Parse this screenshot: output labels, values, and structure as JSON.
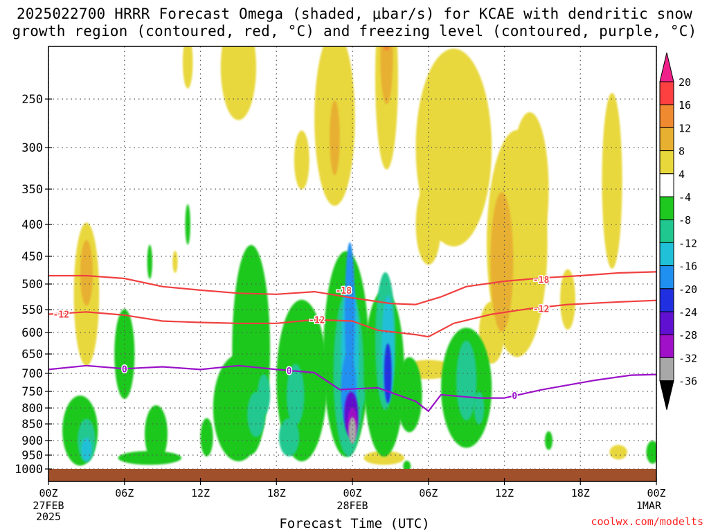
{
  "title_line1": "2025022700 HRRR Forecast Omega (shaded, μbar/s) for KCAE with dendritic snow",
  "title_line2": "growth region (contoured, red, °C) and freezing level (contoured, purple, °C)",
  "credit": "coolwx.com/modelts",
  "xlabel": "Forecast Time (UTC)",
  "chart_data": {
    "type": "contour-time-height",
    "x_ticks": [
      {
        "h": 0,
        "label": "00Z",
        "sub": [
          "27FEB",
          "2025"
        ]
      },
      {
        "h": 6,
        "label": "06Z",
        "sub": []
      },
      {
        "h": 12,
        "label": "12Z",
        "sub": []
      },
      {
        "h": 18,
        "label": "18Z",
        "sub": []
      },
      {
        "h": 24,
        "label": "00Z",
        "sub": [
          "28FEB"
        ]
      },
      {
        "h": 30,
        "label": "06Z",
        "sub": []
      },
      {
        "h": 36,
        "label": "12Z",
        "sub": []
      },
      {
        "h": 42,
        "label": "18Z",
        "sub": []
      },
      {
        "h": 48,
        "label": "00Z",
        "sub": [
          "1MAR"
        ]
      }
    ],
    "xlim": [
      0,
      48
    ],
    "y_ticks": [
      250,
      300,
      350,
      400,
      450,
      500,
      550,
      600,
      650,
      700,
      750,
      800,
      850,
      900,
      950,
      1000
    ],
    "ylim_hPa": [
      1000,
      200
    ],
    "ylabel": "",
    "colorbar": {
      "levels": [
        20,
        16,
        12,
        8,
        4,
        -4,
        -8,
        -12,
        -16,
        -20,
        -24,
        -28,
        -32,
        -36
      ],
      "bands": [
        {
          "lo": 16,
          "hi": 20,
          "color": "#ff4040"
        },
        {
          "lo": 12,
          "hi": 16,
          "color": "#f08a30"
        },
        {
          "lo": 8,
          "hi": 12,
          "color": "#e8b030"
        },
        {
          "lo": 4,
          "hi": 8,
          "color": "#e8d83c"
        },
        {
          "lo": -4,
          "hi": 4,
          "color": "#ffffff"
        },
        {
          "lo": -8,
          "hi": -4,
          "color": "#1ec81e"
        },
        {
          "lo": -12,
          "hi": -8,
          "color": "#20c890"
        },
        {
          "lo": -16,
          "hi": -12,
          "color": "#20c0d8"
        },
        {
          "lo": -20,
          "hi": -16,
          "color": "#2090f0"
        },
        {
          "lo": -24,
          "hi": -20,
          "color": "#2030e0"
        },
        {
          "lo": -28,
          "hi": -24,
          "color": "#6010d0"
        },
        {
          "lo": -32,
          "hi": -28,
          "color": "#a010c8"
        },
        {
          "lo": -36,
          "hi": -32,
          "color": "#a8a8a8"
        }
      ],
      "top_arrow_color": "#f0208a",
      "bottom_arrow_color": "#000000"
    },
    "surface_color": "#a0502a",
    "contours": [
      {
        "value": -18,
        "label": "-18",
        "color": "#f04040",
        "points": [
          [
            0,
            485
          ],
          [
            3,
            485
          ],
          [
            6,
            490
          ],
          [
            9,
            505
          ],
          [
            12,
            512
          ],
          [
            15,
            518
          ],
          [
            18,
            520
          ],
          [
            21,
            515
          ],
          [
            24,
            527
          ],
          [
            27,
            538
          ],
          [
            29,
            540
          ],
          [
            31,
            525
          ],
          [
            33,
            505
          ],
          [
            36,
            495
          ],
          [
            39,
            489
          ],
          [
            42,
            485
          ],
          [
            45,
            480
          ],
          [
            48,
            478
          ]
        ],
        "label_at": [
          [
            23.3,
            512
          ],
          [
            38.9,
            492
          ]
        ]
      },
      {
        "value": -12,
        "label": "-12",
        "color": "#f04040",
        "points": [
          [
            0,
            560
          ],
          [
            3,
            555
          ],
          [
            6,
            562
          ],
          [
            9,
            575
          ],
          [
            12,
            578
          ],
          [
            15,
            580
          ],
          [
            18,
            580
          ],
          [
            21,
            572
          ],
          [
            24,
            575
          ],
          [
            26,
            595
          ],
          [
            29,
            605
          ],
          [
            30,
            610
          ],
          [
            32,
            580
          ],
          [
            35,
            560
          ],
          [
            38,
            548
          ],
          [
            41,
            540
          ],
          [
            45,
            535
          ],
          [
            48,
            532
          ]
        ],
        "label_at": [
          [
            1,
            560
          ],
          [
            21.2,
            572
          ],
          [
            38.9,
            548
          ]
        ]
      },
      {
        "value": 0,
        "label": "0",
        "color": "#9a10c8",
        "points": [
          [
            0,
            690
          ],
          [
            3,
            680
          ],
          [
            6,
            688
          ],
          [
            9,
            683
          ],
          [
            12,
            690
          ],
          [
            15,
            680
          ],
          [
            18,
            690
          ],
          [
            21,
            698
          ],
          [
            23,
            745
          ],
          [
            26,
            740
          ],
          [
            29,
            780
          ],
          [
            30,
            810
          ],
          [
            31,
            760
          ],
          [
            34,
            770
          ],
          [
            36,
            770
          ],
          [
            39,
            745
          ],
          [
            43,
            720
          ],
          [
            46,
            705
          ],
          [
            48,
            703
          ]
        ],
        "label_at": [
          [
            6,
            688
          ],
          [
            19,
            693
          ],
          [
            36.8,
            762
          ]
        ]
      }
    ]
  }
}
